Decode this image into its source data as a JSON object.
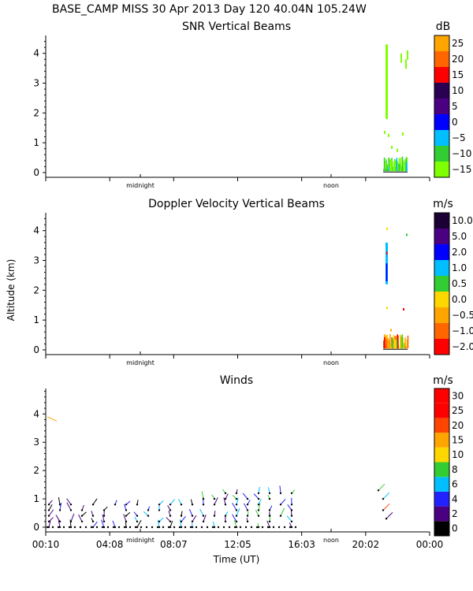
{
  "header": {
    "line1": "BASE_CAMP MISS  30 Apr 2013 Day 120 40.04N 105.24W",
    "ylabel": "Altitude (km)",
    "xlabel": "Time (UT)"
  },
  "colors": {
    "snr": [
      "#7fff00",
      "#32cd32",
      "#00bfff",
      "#0000ff",
      "#4b0082",
      "#2a0052",
      "#ff0000",
      "#ff6600",
      "#ffa500",
      "#ffc000"
    ],
    "doppler": [
      "#ff0000",
      "#ff6600",
      "#ffa500",
      "#ffd700",
      "#32cd32",
      "#00bfff",
      "#0000ff",
      "#4b0082",
      "#1a0033"
    ],
    "winds": [
      "#000000",
      "#4b0082",
      "#2222ff",
      "#00bfff",
      "#32cd32",
      "#ffd700",
      "#ffa500",
      "#ff4500",
      "#ff0000"
    ]
  },
  "chart_data": [
    {
      "type": "heatmap",
      "name": "snr",
      "title": "SNR Vertical Beams",
      "unit": "dB",
      "colorbar_ticks": [
        "25",
        "20",
        "15",
        "10",
        "5",
        "0",
        "−5",
        "−10",
        "−15"
      ],
      "y_ticks": [
        "0",
        "1",
        "2",
        "3",
        "4"
      ],
      "ylim": [
        0,
        4.6
      ],
      "x_marks": [
        "midnight",
        "noon"
      ]
    },
    {
      "type": "heatmap",
      "name": "doppler",
      "title": "Doppler Velocity Vertical Beams",
      "unit": "m/s",
      "colorbar_ticks": [
        "10.0",
        "5.0",
        "2.0",
        "1.0",
        "0.5",
        "0.0",
        "−0.5",
        "−1.0",
        "−2.0"
      ],
      "y_ticks": [
        "0",
        "1",
        "2",
        "3",
        "4"
      ],
      "ylim": [
        0,
        4.6
      ],
      "x_marks": [
        "midnight",
        "noon"
      ]
    },
    {
      "type": "scatter",
      "name": "winds",
      "title": "Winds",
      "unit": "m/s",
      "colorbar_ticks": [
        "30",
        "25",
        "20",
        "15",
        "10",
        "8",
        "6",
        "4",
        "2",
        "0"
      ],
      "y_ticks": [
        "0",
        "1",
        "2",
        "3",
        "4"
      ],
      "ylim": [
        0,
        4.9
      ],
      "x_ticks": [
        "00:10",
        "04:08",
        "08:07",
        "12:05",
        "16:03",
        "20:02",
        "00:00"
      ],
      "x_marks": [
        "midnight",
        "noon"
      ]
    }
  ]
}
